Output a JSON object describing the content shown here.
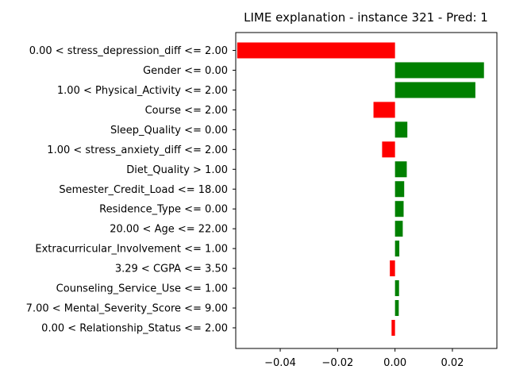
{
  "chart_data": {
    "type": "bar",
    "orientation": "horizontal",
    "title": "LIME explanation - instance 321 - Pred: 1",
    "xlabel": "",
    "ylabel": "",
    "xlim": [
      -0.0555,
      0.0355
    ],
    "x_ticks": [
      -0.04,
      -0.02,
      0.0,
      0.02
    ],
    "x_tick_labels": [
      "−0.04",
      "−0.02",
      "0.00",
      "0.02"
    ],
    "grid": false,
    "legend": "none",
    "colors": {
      "positive": "#008000",
      "negative": "#ff0000"
    },
    "categories": [
      "0.00 < stress_depression_diff <= 2.00",
      "Gender <= 0.00",
      "1.00 < Physical_Activity <= 2.00",
      "Course <= 2.00",
      "Sleep_Quality <= 0.00",
      "1.00 < stress_anxiety_diff <= 2.00",
      "Diet_Quality > 1.00",
      "Semester_Credit_Load <= 18.00",
      "Residence_Type <= 0.00",
      "20.00 < Age <= 22.00",
      "Extracurricular_Involvement <= 1.00",
      "3.29 < CGPA <= 3.50",
      "Counseling_Service_Use <= 1.00",
      "7.00 < Mental_Severity_Score <= 9.00",
      "0.00 < Relationship_Status <= 2.00"
    ],
    "values": [
      -0.055,
      0.031,
      0.028,
      -0.0075,
      0.0043,
      -0.0045,
      0.0041,
      0.0032,
      0.003,
      0.0027,
      0.0015,
      -0.0018,
      0.0014,
      0.0013,
      -0.0012
    ]
  }
}
